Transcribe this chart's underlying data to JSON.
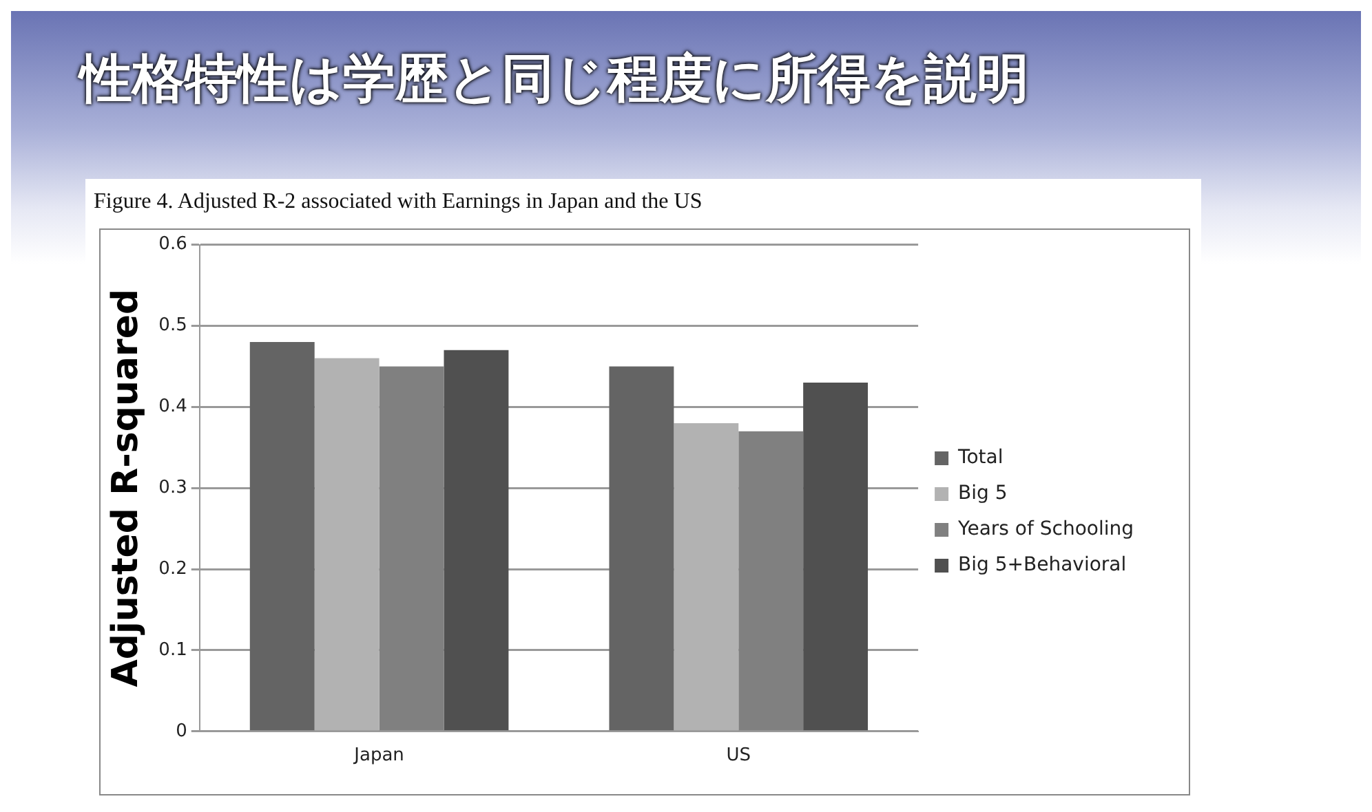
{
  "chart_data": {
    "type": "bar",
    "title": "性格特性は学歴と同じ程度に所得を説明",
    "subtitle": "Figure 4. Adjusted R-2  associated with Earnings in Japan and the US",
    "ylabel": "Adjusted R-squared",
    "categories": [
      "Japan",
      "US"
    ],
    "series": [
      {
        "name": "Total",
        "color": "#646464",
        "values": [
          0.48,
          0.45
        ]
      },
      {
        "name": "Big 5",
        "color": "#b2b2b2",
        "values": [
          0.46,
          0.38
        ]
      },
      {
        "name": "Years of Schooling",
        "color": "#808080",
        "values": [
          0.45,
          0.37
        ]
      },
      {
        "name": "Big 5+Behavioral",
        "color": "#505050",
        "values": [
          0.47,
          0.43
        ]
      }
    ],
    "ylim": [
      0,
      0.6
    ],
    "yticks": [
      0,
      0.1,
      0.2,
      0.3,
      0.4,
      0.5,
      0.6
    ],
    "grid": "y",
    "legend": "right"
  }
}
